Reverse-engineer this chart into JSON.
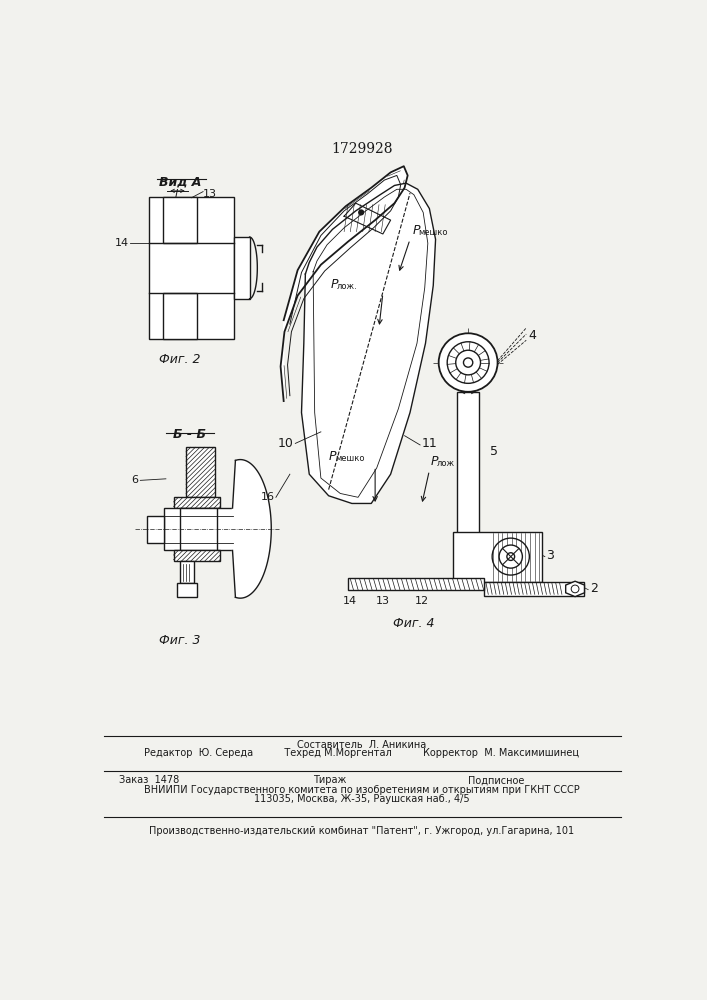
{
  "title": "1729928",
  "bg_color": "#f2f2ee",
  "line_color": "#1a1a1a",
  "fig2_label": "Вид А",
  "fig2_caption": "Фиг. 2",
  "fig3_caption": "Фиг. 3",
  "fig4_caption": "Фиг. 4",
  "section_label": "Б - Б",
  "footer_line1": "Составитель  Л. Аникина",
  "footer_line2": "Редактор  Ю. Середа          Техред М.Моргентал          Корректор  М. Максимишинец",
  "footer_line3": "Заказ  1478",
  "footer_line4": "Тираж",
  "footer_line5": "Подписное",
  "footer_line6": "ВНИИПИ Государственного комитета по изобретениям и открытиям при ГКНТ СССР",
  "footer_line7": "113035, Москва, Ж-35, Раушская наб., 4/5",
  "footer_line8": "Производственно-издательский комбинат \"Патент\", г. Ужгород, ул.Гагарина, 101"
}
